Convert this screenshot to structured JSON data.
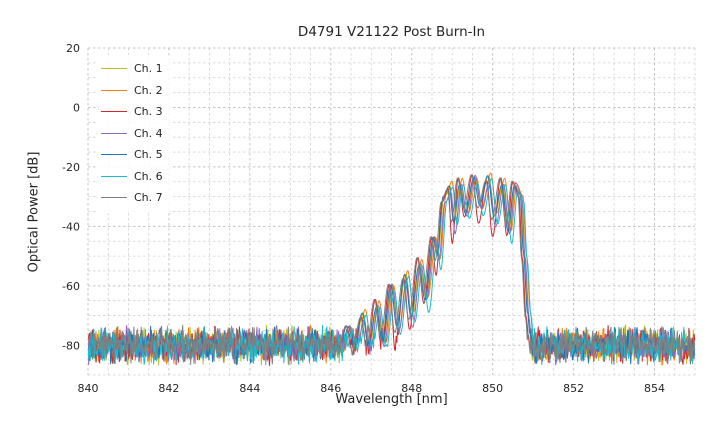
{
  "chart_data": {
    "type": "line",
    "title": "D4791 V21122 Post Burn-In",
    "xlabel": "Wavelength [nm]",
    "ylabel": "Optical Power [dB]",
    "xlim": [
      840,
      855
    ],
    "ylim": [
      -90,
      20
    ],
    "xticks": [
      840,
      842,
      844,
      846,
      848,
      850,
      852,
      854
    ],
    "yticks": [
      20,
      0,
      -20,
      -40,
      -60,
      -80
    ],
    "grid": {
      "on": true,
      "minor_x_step": 0.5,
      "minor_y_step": 5,
      "style": "dashed",
      "minor_color": "#d2d2d2",
      "major_color": "#c3c3c3"
    },
    "legend": {
      "position": "upper left"
    },
    "noise_floor_db": -80,
    "noise_amplitude_db": 7,
    "envelope_points": [
      [
        846.2,
        -88,
        0
      ],
      [
        846.45,
        -74,
        0
      ],
      [
        846.6,
        -82,
        1
      ],
      [
        846.8,
        -70,
        0
      ],
      [
        846.95,
        -80,
        1
      ],
      [
        847.15,
        -66,
        0
      ],
      [
        847.3,
        -78,
        1
      ],
      [
        847.5,
        -60,
        0
      ],
      [
        847.65,
        -74,
        1
      ],
      [
        847.85,
        -57,
        0
      ],
      [
        848.0,
        -70,
        1
      ],
      [
        848.2,
        -52,
        0
      ],
      [
        848.35,
        -63,
        1
      ],
      [
        848.55,
        -44,
        0
      ],
      [
        848.65,
        -50,
        1
      ],
      [
        848.8,
        -31,
        0
      ],
      [
        848.95,
        -27,
        0
      ],
      [
        849.05,
        -38,
        1
      ],
      [
        849.2,
        -25,
        0
      ],
      [
        849.35,
        -34,
        1
      ],
      [
        849.55,
        -23.5,
        0
      ],
      [
        849.7,
        -33,
        1
      ],
      [
        849.9,
        -24,
        0
      ],
      [
        850.05,
        -36,
        1
      ],
      [
        850.25,
        -25,
        0
      ],
      [
        850.4,
        -40,
        1
      ],
      [
        850.55,
        -26,
        0
      ],
      [
        850.7,
        -30,
        0
      ],
      [
        850.78,
        -50,
        0
      ],
      [
        850.88,
        -70,
        0
      ],
      [
        851.0,
        -95,
        0
      ]
    ],
    "series": [
      {
        "name": "Ch. 1",
        "color": "#bcbd22",
        "x_shift": 0.0,
        "y_shift": 0.0,
        "null_extra": 0,
        "seed": 11
      },
      {
        "name": "Ch. 2",
        "color": "#ff7f0e",
        "x_shift": 0.05,
        "y_shift": 1.0,
        "null_extra": 2,
        "seed": 22
      },
      {
        "name": "Ch. 3",
        "color": "#d62728",
        "x_shift": -0.05,
        "y_shift": 0.5,
        "null_extra": 9,
        "seed": 33
      },
      {
        "name": "Ch. 4",
        "color": "#9467bd",
        "x_shift": 0.02,
        "y_shift": -0.5,
        "null_extra": 3,
        "seed": 44
      },
      {
        "name": "Ch. 5",
        "color": "#1f77b4",
        "x_shift": -0.02,
        "y_shift": 0.0,
        "null_extra": 1,
        "seed": 55
      },
      {
        "name": "Ch. 6",
        "color": "#17becf",
        "x_shift": 0.07,
        "y_shift": -1.0,
        "null_extra": 4,
        "seed": 66
      },
      {
        "name": "Ch. 7",
        "color": "#7f7f7f",
        "x_shift": -0.07,
        "y_shift": 0.5,
        "null_extra": 2,
        "seed": 77
      }
    ]
  }
}
